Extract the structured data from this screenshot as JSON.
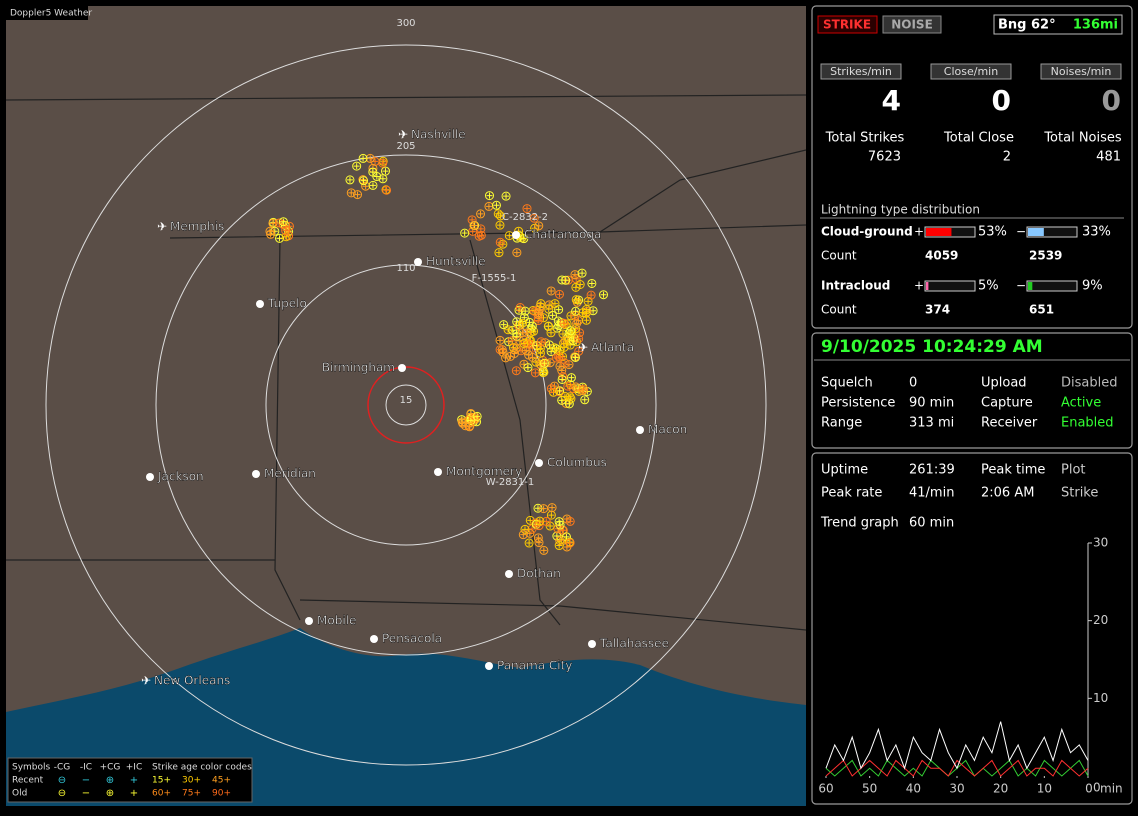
{
  "header": {
    "app": "Doppler5 Weather"
  },
  "map": {
    "range_labels": [
      15,
      110,
      205,
      300
    ],
    "cities": [
      "Nashville",
      "Memphis",
      "Chattanooga",
      "Huntsville",
      "Tupelo",
      "Birmingham",
      "Atlanta",
      "Macon",
      "Jackson",
      "Meridian",
      "Montgomery",
      "Columbus",
      "Dothan",
      "Mobile",
      "Pensacola",
      "Tallahassee",
      "Panama City",
      "New Orleans"
    ],
    "strike_ids": [
      "C-2832-2",
      "F-1555-1",
      "W-2831-1"
    ],
    "legend": {
      "symbols": "Symbols",
      "types": [
        "-CG",
        "-IC",
        "+CG",
        "+IC"
      ],
      "age_title": "Strike age color codes",
      "rows": [
        "Recent",
        "Old"
      ],
      "ages": [
        [
          "15+",
          "30+",
          "45+"
        ],
        [
          "60+",
          "75+",
          "90+"
        ]
      ]
    }
  },
  "panel": {
    "mode": [
      "STRIKE",
      "NOISE"
    ],
    "bearing": "Bng 62°",
    "distance": "136mi",
    "rate_labels": [
      "Strikes/min",
      "Close/min",
      "Noises/min"
    ],
    "rates": [
      4,
      0,
      0
    ],
    "total_labels": [
      "Total Strikes",
      "Total Close",
      "Total Noises"
    ],
    "totals": [
      7623,
      2,
      481
    ],
    "distribution": {
      "title": "Lightning type distribution",
      "count_label": "Count",
      "rows": [
        {
          "name": "Cloud-ground",
          "pos_sign": "+",
          "neg_sign": "−",
          "pos_pct": 53,
          "pos_label": "53%",
          "neg_pct": 33,
          "neg_label": "33%",
          "pos_count": 4059,
          "neg_count": 2539,
          "pos_color": "#ff0000",
          "neg_color": "#88c8ff"
        },
        {
          "name": "Intracloud",
          "pos_sign": "+",
          "neg_sign": "−",
          "pos_pct": 5,
          "pos_label": "5%",
          "neg_pct": 9,
          "neg_label": "9%",
          "pos_count": 374,
          "neg_count": 651,
          "pos_color": "#ff66aa",
          "neg_color": "#22cc22"
        }
      ]
    },
    "datetime": "9/10/2025 10:24:29 AM",
    "status": [
      [
        "Squelch",
        "0",
        "Upload",
        "Disabled"
      ],
      [
        "Persistence",
        "90 min",
        "Capture",
        "Active"
      ],
      [
        "Range",
        "313 mi",
        "Receiver",
        "Enabled"
      ]
    ],
    "stats": [
      [
        "Uptime",
        "261:39",
        "Peak time",
        "Plot"
      ],
      [
        "Peak rate",
        "41/min",
        "2:06 AM",
        "Strike"
      ]
    ],
    "trend_label": "Trend graph",
    "trend_window": "60 min",
    "trend": {
      "ylim": [
        0,
        30
      ],
      "yticks": [
        10,
        20,
        30
      ],
      "xticks": [
        60,
        50,
        40,
        30,
        20,
        10,
        0
      ],
      "x_unit": "min",
      "y_zero": "0",
      "series": [
        {
          "color": "#ffffff",
          "values": [
            1,
            4,
            2,
            5,
            1,
            3,
            6,
            2,
            4,
            1,
            5,
            3,
            2,
            6,
            3,
            1,
            4,
            2,
            5,
            3,
            7,
            2,
            4,
            1,
            3,
            5,
            2,
            6,
            3,
            4,
            2
          ]
        },
        {
          "color": "#ff3030",
          "values": [
            0,
            1,
            2,
            0,
            1,
            2,
            1,
            0,
            2,
            1,
            0,
            2,
            1,
            1,
            0,
            2,
            1,
            0,
            1,
            2,
            0,
            1,
            2,
            0,
            1,
            1,
            0,
            2,
            1,
            0,
            1
          ]
        },
        {
          "color": "#33cc33",
          "values": [
            1,
            0,
            1,
            2,
            0,
            1,
            0,
            2,
            1,
            0,
            1,
            0,
            2,
            1,
            0,
            1,
            2,
            0,
            1,
            0,
            1,
            2,
            0,
            1,
            0,
            2,
            1,
            0,
            1,
            2,
            0
          ]
        }
      ]
    }
  }
}
